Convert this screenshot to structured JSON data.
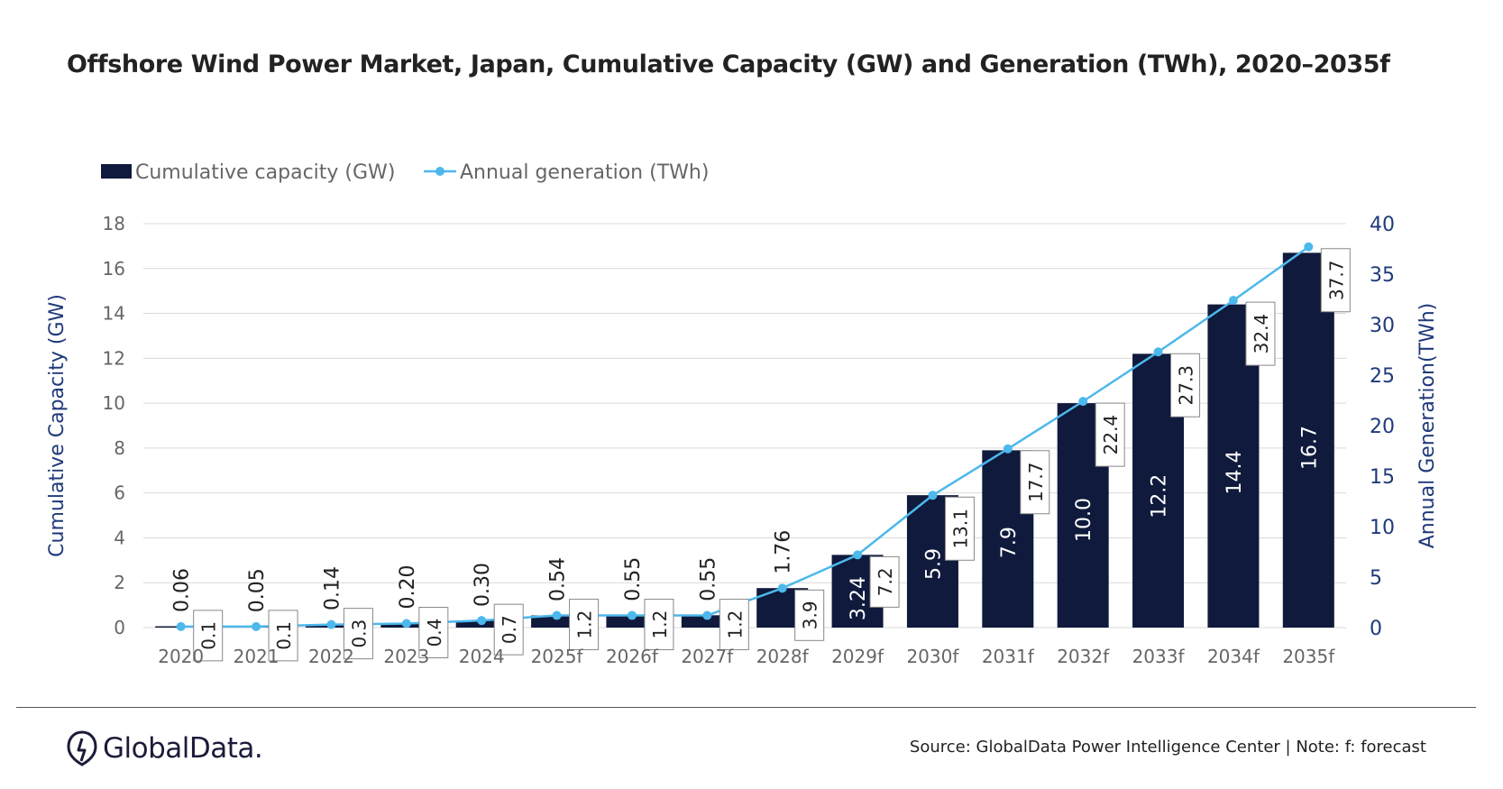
{
  "title": "Offshore Wind Power Market, Japan, Cumulative Capacity (GW) and Generation (TWh), 2020–2035f",
  "footer": {
    "logo_text": "GlobalData.",
    "source": "Source: GlobalData Power Intelligence Center | Note: f: forecast"
  },
  "chart_data": {
    "type": "bar",
    "categories": [
      "2020",
      "2021",
      "2022",
      "2023",
      "2024",
      "2025f",
      "2026f",
      "2027f",
      "2028f",
      "2029f",
      "2030f",
      "2031f",
      "2032f",
      "2033f",
      "2034f",
      "2035f"
    ],
    "series": [
      {
        "name": "Cumulative capacity (GW)",
        "type": "bar",
        "axis": "left",
        "color": "#0f1a3c",
        "values": [
          0.06,
          0.05,
          0.14,
          0.2,
          0.3,
          0.54,
          0.55,
          0.55,
          1.76,
          3.24,
          5.9,
          7.9,
          10.0,
          12.2,
          14.4,
          16.7
        ],
        "labels": [
          "0.06",
          "0.05",
          "0.14",
          "0.20",
          "0.30",
          "0.54",
          "0.55",
          "0.55",
          "1.76",
          "3.24",
          "5.9",
          "7.9",
          "10.0",
          "12.2",
          "14.4",
          "16.7"
        ]
      },
      {
        "name": "Annual generation (TWh)",
        "type": "line",
        "axis": "right",
        "color": "#4db8ec",
        "values": [
          0.1,
          0.1,
          0.3,
          0.4,
          0.7,
          1.2,
          1.2,
          1.2,
          3.9,
          7.2,
          13.1,
          17.7,
          22.4,
          27.3,
          32.4,
          37.7
        ],
        "labels": [
          "0.1",
          "0.1",
          "0.3",
          "0.4",
          "0.7",
          "1.2",
          "1.2",
          "1.2",
          "3.9",
          "7.2",
          "13.1",
          "17.7",
          "22.4",
          "27.3",
          "32.4",
          "37.7"
        ]
      }
    ],
    "y_left": {
      "label": "Cumulative Capacity (GW)",
      "ylim": [
        0,
        18
      ],
      "ticks": [
        "0",
        "2",
        "4",
        "6",
        "8",
        "10",
        "12",
        "14",
        "16",
        "18"
      ]
    },
    "y_right": {
      "label": "Annual Generation(TWh)",
      "ylim": [
        0,
        40
      ],
      "ticks": [
        "0",
        "5",
        "10",
        "15",
        "20",
        "25",
        "30",
        "35",
        "40"
      ]
    },
    "grid": true,
    "legend": "top-left",
    "axis_color": "#1f3a7a",
    "tick_color": "#666666",
    "gridline_color": "#d9d9d9"
  }
}
